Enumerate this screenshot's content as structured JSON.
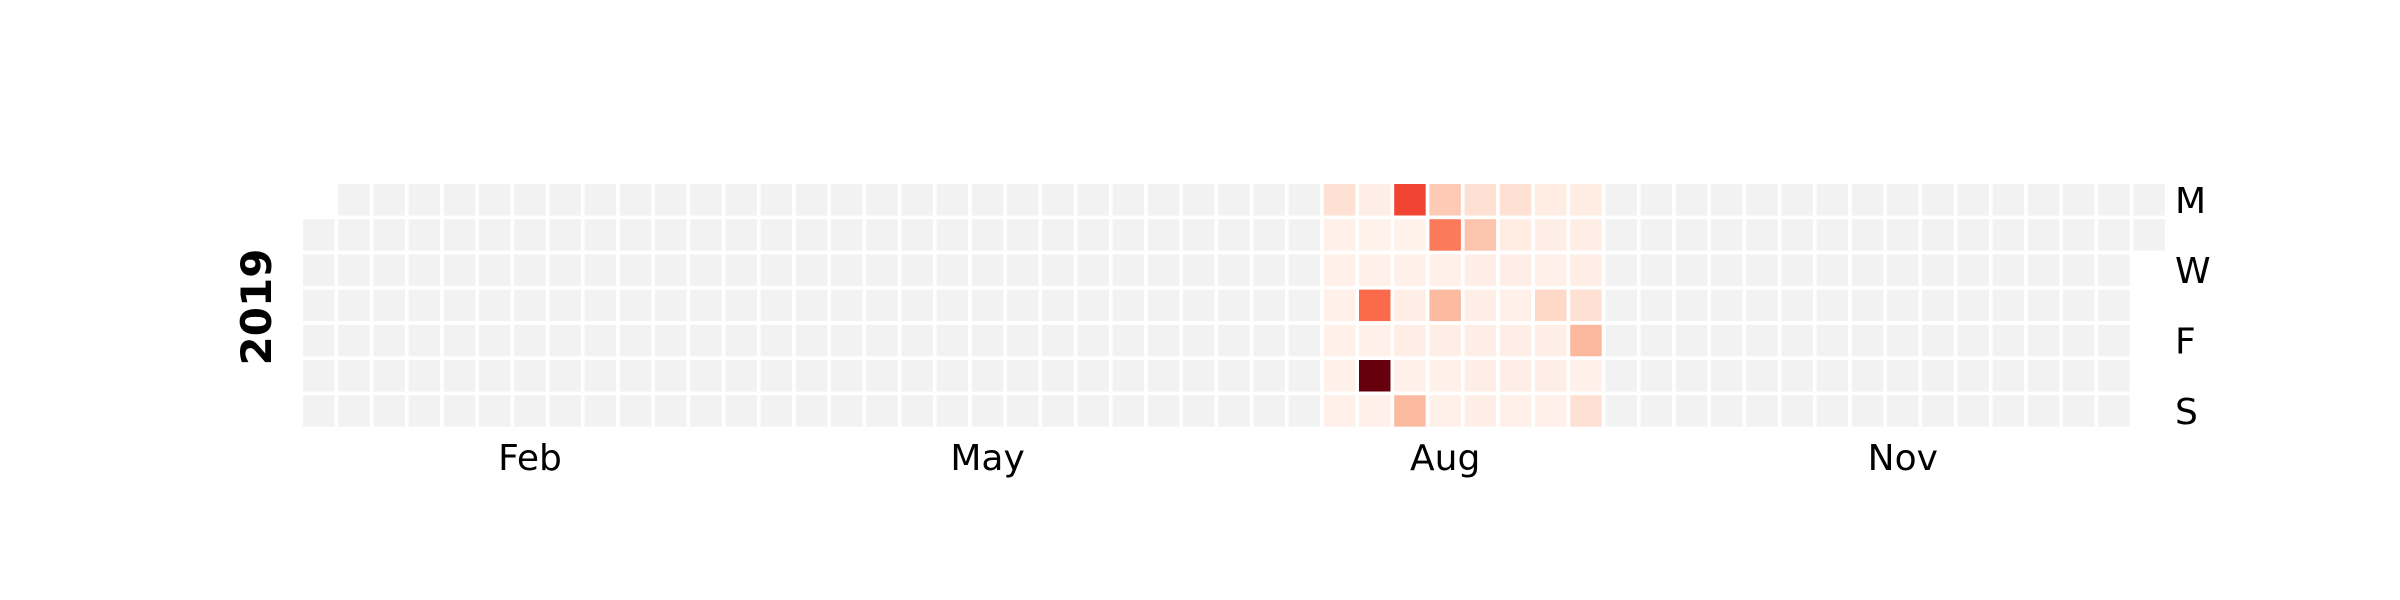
{
  "chart_data": {
    "type": "heatmap",
    "subtype": "calendar-heatmap",
    "year": "2019",
    "month_labels": [
      {
        "label": "Feb",
        "week": 6
      },
      {
        "label": "May",
        "week": 19
      },
      {
        "label": "Aug",
        "week": 32
      },
      {
        "label": "Nov",
        "week": 45
      }
    ],
    "day_labels": [
      {
        "label": "M",
        "day": 0
      },
      {
        "label": "W",
        "day": 2
      },
      {
        "label": "F",
        "day": 4
      },
      {
        "label": "S",
        "day": 6
      }
    ],
    "weeks": 53,
    "colorscale": "Reds",
    "empty_color": "#f2f2f2",
    "vmax": 10,
    "active_weeks": [
      {
        "week": 29,
        "values": [
          1.2,
          0.3,
          0.3,
          0.3,
          0.3,
          0.3,
          0.3
        ]
      },
      {
        "week": 30,
        "values": [
          0.4,
          0.2,
          0.3,
          5,
          0.3,
          10,
          0.3
        ]
      },
      {
        "week": 31,
        "values": [
          6,
          0.2,
          0.3,
          0.4,
          0.4,
          0.3,
          2.5
        ]
      },
      {
        "week": 32,
        "values": [
          2,
          4.5,
          0.3,
          2.5,
          0.4,
          0.3,
          0.3
        ]
      },
      {
        "week": 33,
        "values": [
          1.2,
          2.2,
          0.4,
          0.4,
          0.4,
          0.4,
          0.4
        ]
      },
      {
        "week": 34,
        "values": [
          1.2,
          0.5,
          0.4,
          0.3,
          0.4,
          0.4,
          0.3
        ]
      },
      {
        "week": 35,
        "values": [
          0.5,
          0.4,
          0.3,
          1.5,
          0.4,
          0.4,
          0.3
        ]
      },
      {
        "week": 36,
        "values": [
          0.5,
          0.4,
          0.4,
          1.2,
          2.6,
          0.3,
          1.2
        ]
      }
    ]
  }
}
